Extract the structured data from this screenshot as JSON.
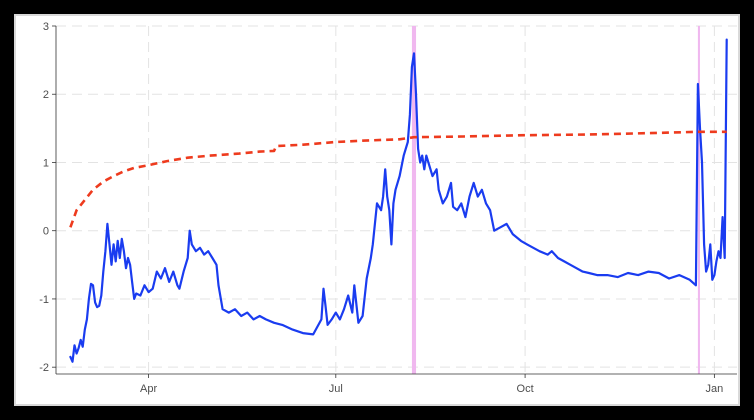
{
  "chart_data": {
    "type": "line",
    "title": "",
    "xlabel": "",
    "ylabel": "",
    "x_range": [
      "2019-02-15",
      "2020-01-12"
    ],
    "ylim": [
      -2.1,
      3.0
    ],
    "x_ticks": [
      {
        "date": "2019-04-01",
        "label": "Apr"
      },
      {
        "date": "2019-07-01",
        "label": "Jul"
      },
      {
        "date": "2019-10-01",
        "label": "Oct"
      },
      {
        "date": "2020-01-01",
        "label": "Jan"
      }
    ],
    "y_ticks": [
      {
        "value": -2,
        "label": "-2"
      },
      {
        "value": -1,
        "label": "-1"
      },
      {
        "value": 0,
        "label": "0"
      },
      {
        "value": 1,
        "label": "1"
      },
      {
        "value": 2,
        "label": "2"
      },
      {
        "value": 3,
        "label": "3"
      }
    ],
    "grid": true,
    "highlight_bands": [
      {
        "start": "2019-08-07",
        "end": "2019-08-09",
        "color": "#f0b8ef"
      },
      {
        "start": "2019-12-24",
        "end": "2019-12-25",
        "color": "#f0b8ef"
      }
    ],
    "series": [
      {
        "style": "solid",
        "color": "#1a3cf0",
        "points": [
          [
            "2019-02-22",
            -1.85
          ],
          [
            "2019-02-23",
            -1.92
          ],
          [
            "2019-02-24",
            -1.68
          ],
          [
            "2019-02-25",
            -1.8
          ],
          [
            "2019-02-26",
            -1.72
          ],
          [
            "2019-02-27",
            -1.6
          ],
          [
            "2019-02-28",
            -1.7
          ],
          [
            "2019-03-01",
            -1.45
          ],
          [
            "2019-03-02",
            -1.3
          ],
          [
            "2019-03-03",
            -1.0
          ],
          [
            "2019-03-04",
            -0.78
          ],
          [
            "2019-03-05",
            -0.8
          ],
          [
            "2019-03-06",
            -1.05
          ],
          [
            "2019-03-07",
            -1.12
          ],
          [
            "2019-03-08",
            -1.1
          ],
          [
            "2019-03-09",
            -0.95
          ],
          [
            "2019-03-10",
            -0.6
          ],
          [
            "2019-03-11",
            -0.3
          ],
          [
            "2019-03-12",
            0.1
          ],
          [
            "2019-03-13",
            -0.2
          ],
          [
            "2019-03-14",
            -0.5
          ],
          [
            "2019-03-15",
            -0.2
          ],
          [
            "2019-03-16",
            -0.45
          ],
          [
            "2019-03-17",
            -0.15
          ],
          [
            "2019-03-18",
            -0.4
          ],
          [
            "2019-03-19",
            -0.12
          ],
          [
            "2019-03-20",
            -0.3
          ],
          [
            "2019-03-21",
            -0.55
          ],
          [
            "2019-03-22",
            -0.4
          ],
          [
            "2019-03-23",
            -0.5
          ],
          [
            "2019-03-24",
            -0.75
          ],
          [
            "2019-03-25",
            -1.0
          ],
          [
            "2019-03-26",
            -0.92
          ],
          [
            "2019-03-28",
            -0.95
          ],
          [
            "2019-03-30",
            -0.8
          ],
          [
            "2019-04-01",
            -0.9
          ],
          [
            "2019-04-03",
            -0.85
          ],
          [
            "2019-04-05",
            -0.6
          ],
          [
            "2019-04-07",
            -0.7
          ],
          [
            "2019-04-09",
            -0.55
          ],
          [
            "2019-04-11",
            -0.75
          ],
          [
            "2019-04-13",
            -0.6
          ],
          [
            "2019-04-15",
            -0.8
          ],
          [
            "2019-04-16",
            -0.85
          ],
          [
            "2019-04-18",
            -0.6
          ],
          [
            "2019-04-20",
            -0.4
          ],
          [
            "2019-04-21",
            0.0
          ],
          [
            "2019-04-22",
            -0.2
          ],
          [
            "2019-04-24",
            -0.3
          ],
          [
            "2019-04-26",
            -0.25
          ],
          [
            "2019-04-28",
            -0.35
          ],
          [
            "2019-04-30",
            -0.3
          ],
          [
            "2019-05-02",
            -0.4
          ],
          [
            "2019-05-04",
            -0.5
          ],
          [
            "2019-05-05",
            -0.8
          ],
          [
            "2019-05-07",
            -1.15
          ],
          [
            "2019-05-10",
            -1.2
          ],
          [
            "2019-05-13",
            -1.15
          ],
          [
            "2019-05-16",
            -1.25
          ],
          [
            "2019-05-19",
            -1.2
          ],
          [
            "2019-05-22",
            -1.3
          ],
          [
            "2019-05-25",
            -1.25
          ],
          [
            "2019-05-28",
            -1.3
          ],
          [
            "2019-06-01",
            -1.35
          ],
          [
            "2019-06-05",
            -1.38
          ],
          [
            "2019-06-10",
            -1.45
          ],
          [
            "2019-06-15",
            -1.5
          ],
          [
            "2019-06-20",
            -1.52
          ],
          [
            "2019-06-24",
            -1.3
          ],
          [
            "2019-06-25",
            -0.85
          ],
          [
            "2019-06-26",
            -1.1
          ],
          [
            "2019-06-27",
            -1.38
          ],
          [
            "2019-06-29",
            -1.3
          ],
          [
            "2019-07-01",
            -1.2
          ],
          [
            "2019-07-03",
            -1.3
          ],
          [
            "2019-07-05",
            -1.15
          ],
          [
            "2019-07-07",
            -0.95
          ],
          [
            "2019-07-09",
            -1.2
          ],
          [
            "2019-07-10",
            -0.8
          ],
          [
            "2019-07-12",
            -1.35
          ],
          [
            "2019-07-14",
            -1.25
          ],
          [
            "2019-07-16",
            -0.7
          ],
          [
            "2019-07-18",
            -0.4
          ],
          [
            "2019-07-19",
            -0.2
          ],
          [
            "2019-07-20",
            0.1
          ],
          [
            "2019-07-21",
            0.4
          ],
          [
            "2019-07-23",
            0.3
          ],
          [
            "2019-07-24",
            0.5
          ],
          [
            "2019-07-25",
            0.9
          ],
          [
            "2019-07-26",
            0.5
          ],
          [
            "2019-07-27",
            0.3
          ],
          [
            "2019-07-28",
            -0.2
          ],
          [
            "2019-07-29",
            0.4
          ],
          [
            "2019-07-30",
            0.6
          ],
          [
            "2019-08-01",
            0.8
          ],
          [
            "2019-08-03",
            1.1
          ],
          [
            "2019-08-05",
            1.3
          ],
          [
            "2019-08-06",
            1.7
          ],
          [
            "2019-08-07",
            2.4
          ],
          [
            "2019-08-08",
            2.6
          ],
          [
            "2019-08-09",
            2.0
          ],
          [
            "2019-08-10",
            1.2
          ],
          [
            "2019-08-11",
            1.0
          ],
          [
            "2019-08-12",
            1.1
          ],
          [
            "2019-08-13",
            0.9
          ],
          [
            "2019-08-14",
            1.1
          ],
          [
            "2019-08-15",
            1.0
          ],
          [
            "2019-08-17",
            0.8
          ],
          [
            "2019-08-19",
            0.9
          ],
          [
            "2019-08-20",
            0.6
          ],
          [
            "2019-08-22",
            0.4
          ],
          [
            "2019-08-24",
            0.5
          ],
          [
            "2019-08-26",
            0.7
          ],
          [
            "2019-08-27",
            0.35
          ],
          [
            "2019-08-29",
            0.3
          ],
          [
            "2019-08-31",
            0.4
          ],
          [
            "2019-09-02",
            0.2
          ],
          [
            "2019-09-04",
            0.5
          ],
          [
            "2019-09-06",
            0.7
          ],
          [
            "2019-09-08",
            0.5
          ],
          [
            "2019-09-10",
            0.6
          ],
          [
            "2019-09-12",
            0.4
          ],
          [
            "2019-09-14",
            0.3
          ],
          [
            "2019-09-16",
            0.0
          ],
          [
            "2019-09-19",
            0.05
          ],
          [
            "2019-09-22",
            0.1
          ],
          [
            "2019-09-25",
            -0.05
          ],
          [
            "2019-09-29",
            -0.15
          ],
          [
            "2019-10-02",
            -0.2
          ],
          [
            "2019-10-05",
            -0.25
          ],
          [
            "2019-10-08",
            -0.3
          ],
          [
            "2019-10-12",
            -0.35
          ],
          [
            "2019-10-14",
            -0.3
          ],
          [
            "2019-10-17",
            -0.4
          ],
          [
            "2019-10-20",
            -0.45
          ],
          [
            "2019-10-23",
            -0.5
          ],
          [
            "2019-10-26",
            -0.55
          ],
          [
            "2019-10-29",
            -0.6
          ],
          [
            "2019-11-01",
            -0.62
          ],
          [
            "2019-11-05",
            -0.65
          ],
          [
            "2019-11-10",
            -0.65
          ],
          [
            "2019-11-15",
            -0.68
          ],
          [
            "2019-11-20",
            -0.62
          ],
          [
            "2019-11-25",
            -0.65
          ],
          [
            "2019-11-30",
            -0.6
          ],
          [
            "2019-12-05",
            -0.62
          ],
          [
            "2019-12-10",
            -0.7
          ],
          [
            "2019-12-15",
            -0.65
          ],
          [
            "2019-12-20",
            -0.72
          ],
          [
            "2019-12-23",
            -0.8
          ],
          [
            "2019-12-24",
            2.15
          ],
          [
            "2019-12-25",
            1.5
          ],
          [
            "2019-12-26",
            1.0
          ],
          [
            "2019-12-27",
            -0.2
          ],
          [
            "2019-12-28",
            -0.6
          ],
          [
            "2019-12-29",
            -0.5
          ],
          [
            "2019-12-30",
            -0.2
          ],
          [
            "2019-12-31",
            -0.72
          ],
          [
            "2020-01-01",
            -0.65
          ],
          [
            "2020-01-02",
            -0.45
          ],
          [
            "2020-01-03",
            -0.3
          ],
          [
            "2020-01-04",
            -0.4
          ],
          [
            "2020-01-05",
            0.2
          ],
          [
            "2020-01-06",
            -0.4
          ],
          [
            "2020-01-07",
            2.8
          ]
        ]
      },
      {
        "style": "dashed",
        "color": "#ee3b1e",
        "points": [
          [
            "2019-02-22",
            0.05
          ],
          [
            "2019-02-25",
            0.3
          ],
          [
            "2019-03-01",
            0.45
          ],
          [
            "2019-03-05",
            0.6
          ],
          [
            "2019-03-10",
            0.72
          ],
          [
            "2019-03-15",
            0.8
          ],
          [
            "2019-03-20",
            0.87
          ],
          [
            "2019-03-25",
            0.92
          ],
          [
            "2019-04-01",
            0.96
          ],
          [
            "2019-04-10",
            1.02
          ],
          [
            "2019-04-20",
            1.07
          ],
          [
            "2019-05-01",
            1.1
          ],
          [
            "2019-05-15",
            1.13
          ],
          [
            "2019-05-25",
            1.16
          ],
          [
            "2019-06-01",
            1.17
          ],
          [
            "2019-06-02",
            1.24
          ],
          [
            "2019-06-15",
            1.26
          ],
          [
            "2019-07-01",
            1.3
          ],
          [
            "2019-07-15",
            1.32
          ],
          [
            "2019-08-01",
            1.34
          ],
          [
            "2019-08-08",
            1.37
          ],
          [
            "2019-09-01",
            1.38
          ],
          [
            "2019-10-01",
            1.4
          ],
          [
            "2019-11-01",
            1.41
          ],
          [
            "2019-12-01",
            1.43
          ],
          [
            "2019-12-24",
            1.45
          ],
          [
            "2020-01-07",
            1.45
          ]
        ]
      }
    ]
  }
}
